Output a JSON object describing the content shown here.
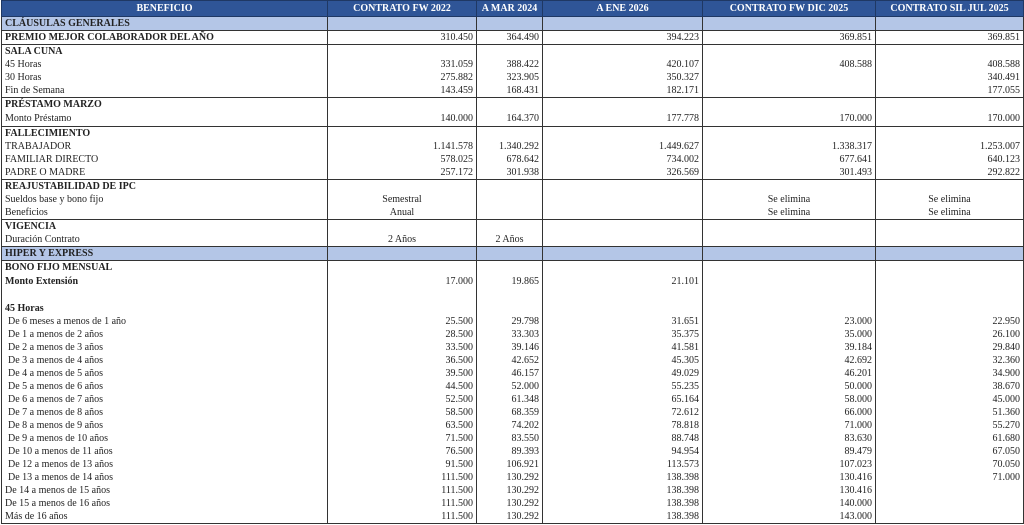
{
  "colors": {
    "header_bg": "#2f5597",
    "section_bg": "#b4c6e7"
  },
  "headers": [
    "BENEFICIO",
    "CONTRATO FW 2022",
    "A MAR 2024",
    "A ENE 2026",
    "CONTRATO FW DIC 2025",
    "CONTRATO SIL JUL 2025"
  ],
  "rows": [
    {
      "type": "section",
      "cells": [
        "CLÁUSULAS GENERALES",
        "",
        "",
        "",
        "",
        ""
      ]
    },
    {
      "type": "title",
      "group": true,
      "cells": [
        "PREMIO MEJOR COLABORADOR DEL AÑO",
        "310.450",
        "364.490",
        "394.223",
        "369.851",
        "369.851"
      ]
    },
    {
      "type": "title",
      "group": true,
      "cells": [
        "SALA CUNA",
        "",
        "",
        "",
        "",
        ""
      ]
    },
    {
      "type": "row",
      "cells": [
        "45 Horas",
        "331.059",
        "388.422",
        "420.107",
        "408.588",
        "408.588"
      ]
    },
    {
      "type": "row",
      "cells": [
        "30 Horas",
        "275.882",
        "323.905",
        "350.327",
        "",
        "340.491"
      ]
    },
    {
      "type": "row",
      "cells": [
        "Fin de Semana",
        "143.459",
        "168.431",
        "182.171",
        "",
        "177.055"
      ]
    },
    {
      "type": "title",
      "group": true,
      "cells": [
        "PRÉSTAMO MARZO",
        "",
        "",
        "",
        "",
        ""
      ]
    },
    {
      "type": "row",
      "tall": true,
      "cells": [
        "Monto Préstamo",
        "140.000",
        "164.370",
        "177.778",
        "170.000",
        "170.000"
      ]
    },
    {
      "type": "title",
      "group": true,
      "cells": [
        "FALLECIMIENTO",
        "",
        "",
        "",
        "",
        ""
      ]
    },
    {
      "type": "row",
      "cells": [
        "TRABAJADOR",
        "1.141.578",
        "1.340.292",
        "1.449.627",
        "1.338.317",
        "1.253.007"
      ]
    },
    {
      "type": "row",
      "cells": [
        "FAMILIAR DIRECTO",
        "578.025",
        "678.642",
        "734.002",
        "677.641",
        "640.123"
      ]
    },
    {
      "type": "row",
      "cells": [
        "PADRE O MADRE",
        "257.172",
        "301.938",
        "326.569",
        "301.493",
        "292.822"
      ]
    },
    {
      "type": "title",
      "group": true,
      "cells": [
        "REAJUSTABILIDAD DE IPC",
        "",
        "",
        "",
        "",
        ""
      ]
    },
    {
      "type": "row",
      "center": true,
      "cells": [
        "Sueldos base y bono fijo",
        "Semestral",
        "",
        "",
        "Se elimina",
        "Se elimina"
      ]
    },
    {
      "type": "row",
      "center": true,
      "cells": [
        "Beneficios",
        "Anual",
        "",
        "",
        "Se elimina",
        "Se elimina"
      ]
    },
    {
      "type": "title",
      "group": true,
      "cells": [
        "VIGENCIA",
        "",
        "",
        "",
        "",
        ""
      ]
    },
    {
      "type": "row",
      "center": true,
      "cells": [
        "Duración Contrato",
        "2 Años",
        "2 Años",
        "",
        "",
        ""
      ]
    },
    {
      "type": "section",
      "cells": [
        "HIPER Y EXPRESS",
        "",
        "",
        "",
        "",
        ""
      ]
    },
    {
      "type": "title",
      "group": true,
      "cells": [
        "BONO FIJO MENSUAL",
        "",
        "",
        "",
        "",
        ""
      ]
    },
    {
      "type": "bold",
      "tall": true,
      "cells": [
        "Monto Extensión",
        "17.000",
        "19.865",
        "21.101",
        "",
        ""
      ]
    },
    {
      "type": "row",
      "cells": [
        "",
        "",
        "",
        "",
        "",
        ""
      ]
    },
    {
      "type": "bold",
      "cells": [
        "45 Horas",
        "",
        "",
        "",
        "",
        ""
      ]
    },
    {
      "type": "indent",
      "cells": [
        "De 6 meses a menos de 1 año",
        "25.500",
        "29.798",
        "31.651",
        "23.000",
        "22.950"
      ]
    },
    {
      "type": "indent",
      "cells": [
        "De 1 a menos de 2 años",
        "28.500",
        "33.303",
        "35.375",
        "35.000",
        "26.100"
      ]
    },
    {
      "type": "indent",
      "cells": [
        "De 2 a menos de 3 años",
        "33.500",
        "39.146",
        "41.581",
        "39.184",
        "29.840"
      ]
    },
    {
      "type": "indent",
      "cells": [
        "De 3 a menos de 4 años",
        "36.500",
        "42.652",
        "45.305",
        "42.692",
        "32.360"
      ]
    },
    {
      "type": "indent",
      "cells": [
        "De 4 a menos de 5 años",
        "39.500",
        "46.157",
        "49.029",
        "46.201",
        "34.900"
      ]
    },
    {
      "type": "indent",
      "cells": [
        "De 5 a menos de 6 años",
        "44.500",
        "52.000",
        "55.235",
        "50.000",
        "38.670"
      ]
    },
    {
      "type": "indent",
      "cells": [
        "De 6 a menos de 7 años",
        "52.500",
        "61.348",
        "65.164",
        "58.000",
        "45.000"
      ]
    },
    {
      "type": "indent",
      "cells": [
        "De 7 a menos de 8 años",
        "58.500",
        "68.359",
        "72.612",
        "66.000",
        "51.360"
      ]
    },
    {
      "type": "indent",
      "cells": [
        "De 8 a menos de 9 años",
        "63.500",
        "74.202",
        "78.818",
        "71.000",
        "55.270"
      ]
    },
    {
      "type": "indent",
      "cells": [
        "De 9 a menos de 10 años",
        "71.500",
        "83.550",
        "88.748",
        "83.630",
        "61.680"
      ]
    },
    {
      "type": "indent",
      "cells": [
        "De 10 a menos de 11 años",
        "76.500",
        "89.393",
        "94.954",
        "89.479",
        "67.050"
      ]
    },
    {
      "type": "indent",
      "cells": [
        "De 12 a menos de 13 años",
        "91.500",
        "106.921",
        "113.573",
        "107.023",
        "70.050"
      ]
    },
    {
      "type": "indent",
      "cells": [
        "De 13 a menos de 14 años",
        "111.500",
        "130.292",
        "138.398",
        "130.416",
        "71.000"
      ]
    },
    {
      "type": "row",
      "cells": [
        "De 14 a menos de 15 años",
        "111.500",
        "130.292",
        "138.398",
        "130.416",
        ""
      ]
    },
    {
      "type": "row",
      "cells": [
        "De 15 a menos de 16 años",
        "111.500",
        "130.292",
        "138.398",
        "140.000",
        ""
      ]
    },
    {
      "type": "row",
      "last": true,
      "cells": [
        "Más de 16 años",
        "111.500",
        "130.292",
        "138.398",
        "143.000",
        ""
      ]
    }
  ]
}
